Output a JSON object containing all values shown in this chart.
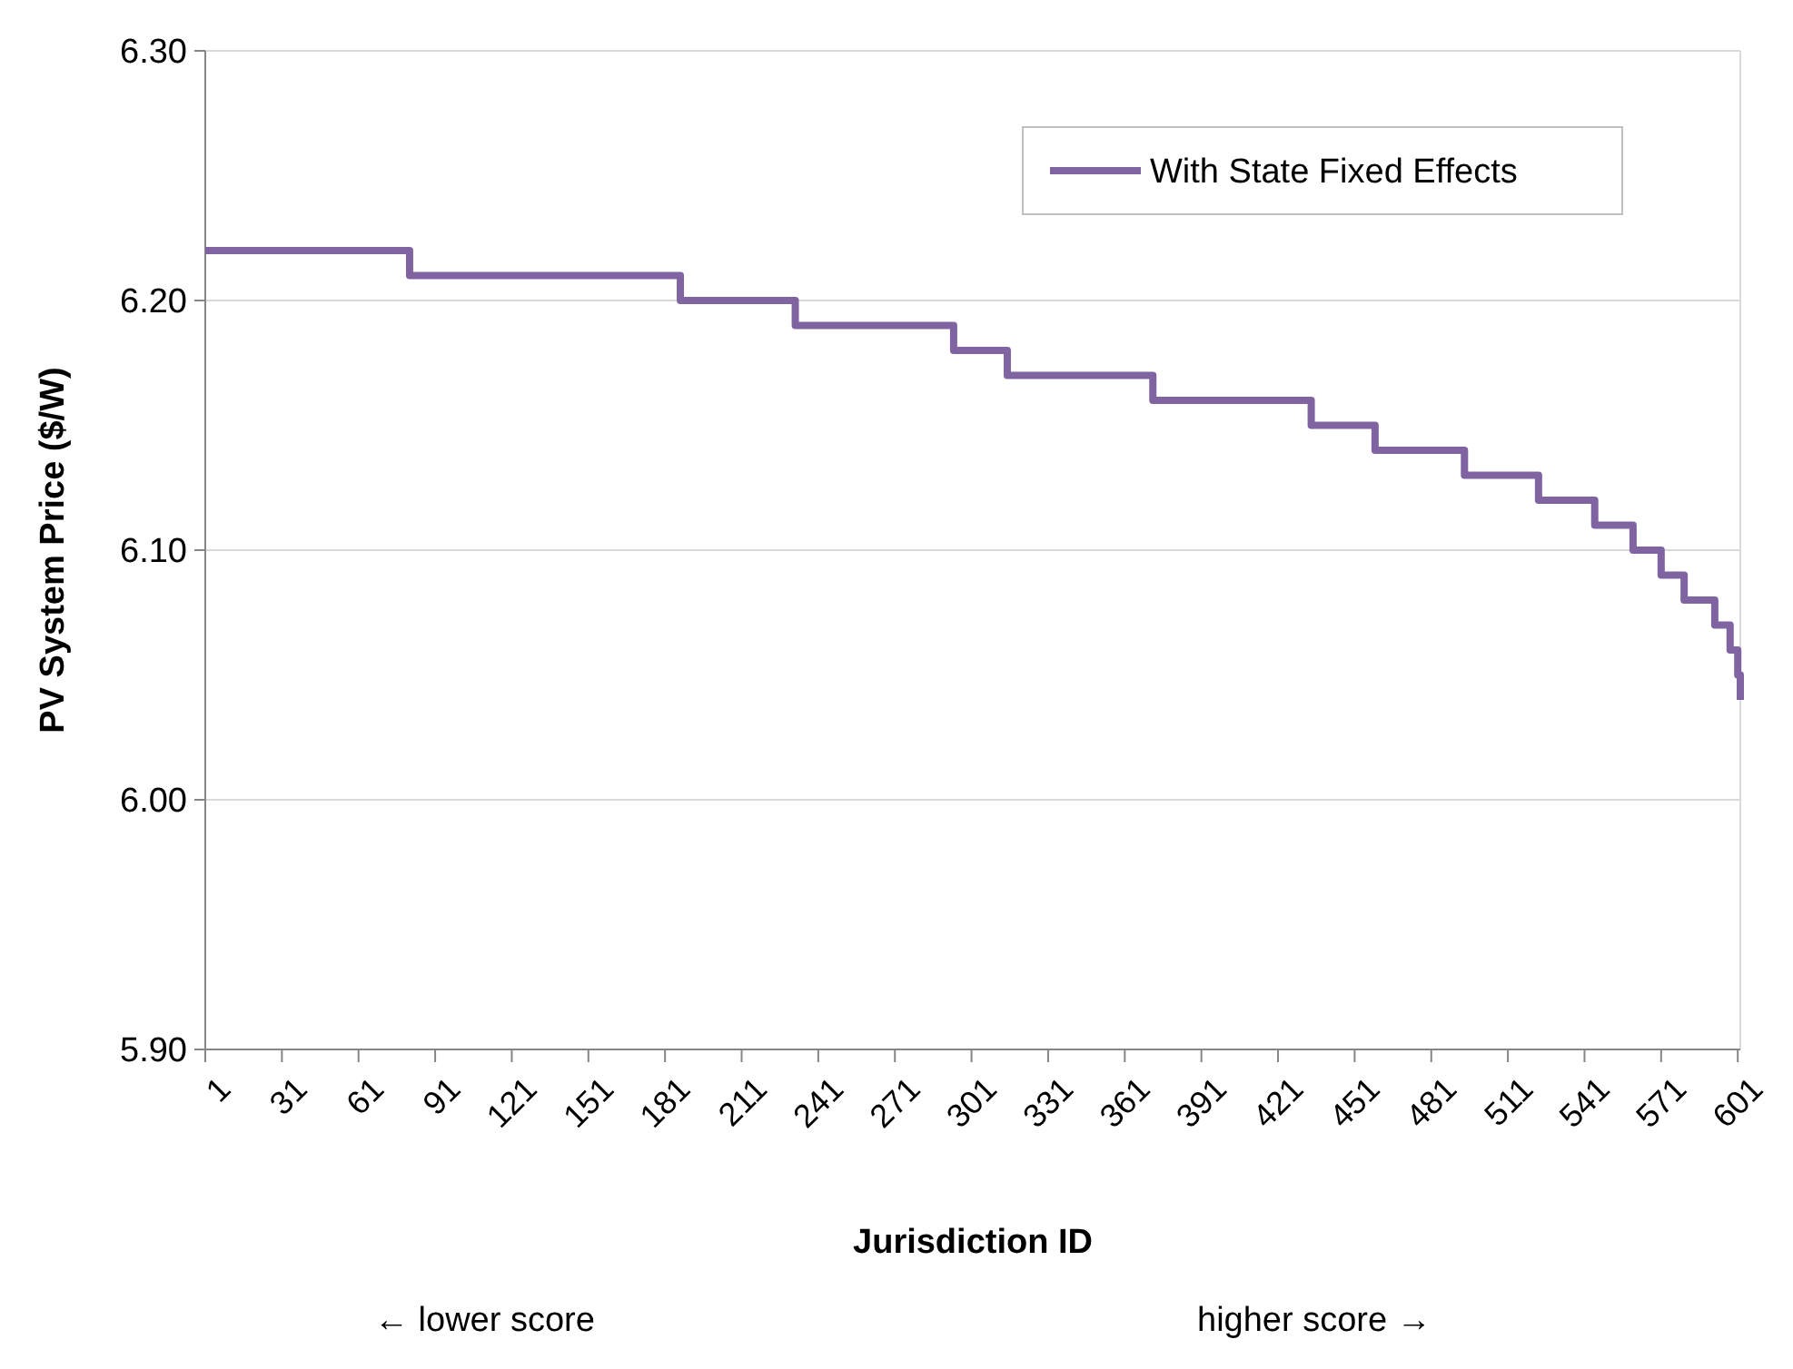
{
  "chart_data": {
    "type": "step",
    "xlabel": "Jurisdiction ID",
    "ylabel": "PV System Price ($/W)",
    "x": [
      1,
      81,
      187,
      232,
      294,
      315,
      372,
      434,
      459,
      494,
      523,
      545,
      560,
      571,
      580,
      592,
      598,
      601,
      602
    ],
    "series": [
      {
        "name": "With State Fixed Effects",
        "color": "#8064a2",
        "values": [
          6.22,
          6.21,
          6.2,
          6.19,
          6.18,
          6.17,
          6.16,
          6.15,
          6.14,
          6.13,
          6.12,
          6.11,
          6.1,
          6.09,
          6.08,
          6.07,
          6.06,
          6.05,
          6.04
        ]
      }
    ],
    "xlim": [
      1,
      602
    ],
    "xticks": [
      1,
      31,
      61,
      91,
      121,
      151,
      181,
      211,
      241,
      271,
      301,
      331,
      361,
      391,
      421,
      451,
      481,
      511,
      541,
      571,
      601
    ],
    "ylim": [
      5.9,
      6.3
    ],
    "yticks": [
      {
        "value": 5.9,
        "label": "5.90"
      },
      {
        "value": 6.0,
        "label": "6.00"
      },
      {
        "value": 6.1,
        "label": "6.10"
      },
      {
        "value": 6.2,
        "label": "6.20"
      },
      {
        "value": 6.3,
        "label": "6.30"
      }
    ],
    "grid": "y",
    "legend": "top right",
    "line_style": "solid",
    "annotations": [
      "← lower score",
      "higher score →"
    ]
  }
}
